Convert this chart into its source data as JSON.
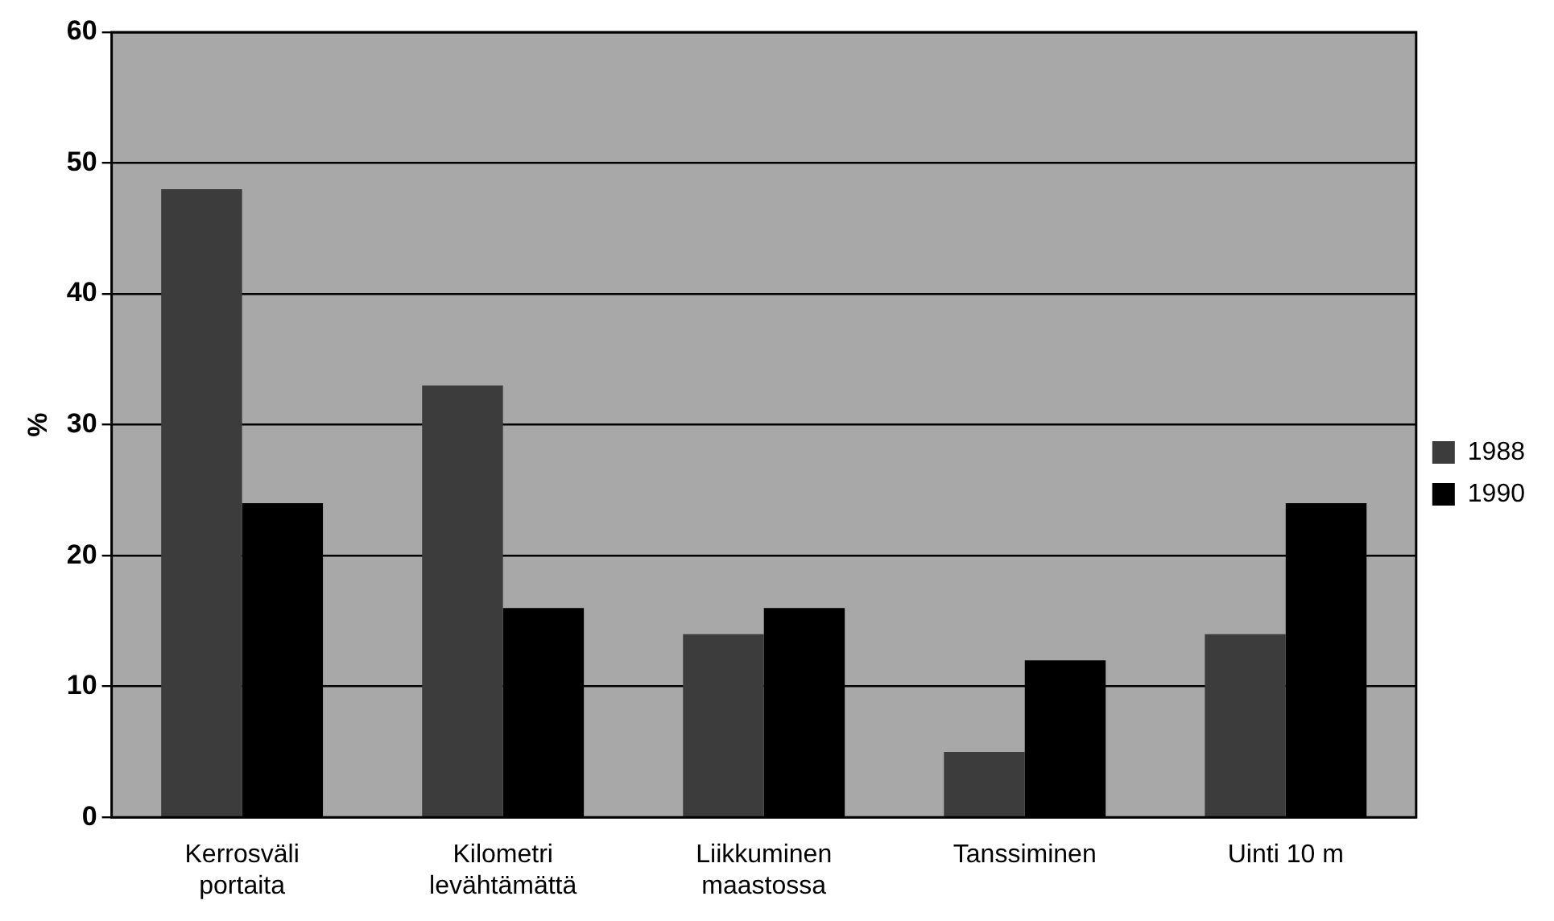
{
  "chart_data": {
    "type": "bar",
    "ylabel": "%",
    "categories": [
      "Kerrosväli\nportaita",
      "Kilometri\nlevähtämättä",
      "Liikkuminen\nmaastossa",
      "Tanssiminen",
      "Uinti 10 m"
    ],
    "series": [
      {
        "name": "1988",
        "color": "#3c3c3c",
        "values": [
          48,
          33,
          14,
          5,
          14
        ]
      },
      {
        "name": "1990",
        "color": "#000000",
        "values": [
          24,
          16,
          16,
          12,
          24
        ]
      }
    ],
    "ylim": [
      0,
      60
    ],
    "yticks": [
      0,
      10,
      20,
      30,
      40,
      50,
      60
    ],
    "grid": "y",
    "legend": "right"
  }
}
